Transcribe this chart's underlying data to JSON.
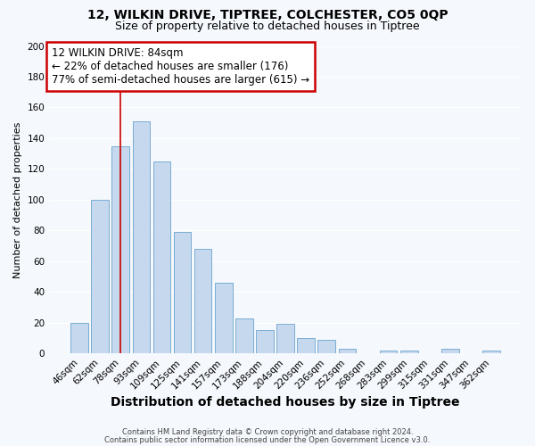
{
  "title": "12, WILKIN DRIVE, TIPTREE, COLCHESTER, CO5 0QP",
  "subtitle": "Size of property relative to detached houses in Tiptree",
  "xlabel": "Distribution of detached houses by size in Tiptree",
  "ylabel": "Number of detached properties",
  "bar_labels": [
    "46sqm",
    "62sqm",
    "78sqm",
    "93sqm",
    "109sqm",
    "125sqm",
    "141sqm",
    "157sqm",
    "173sqm",
    "188sqm",
    "204sqm",
    "220sqm",
    "236sqm",
    "252sqm",
    "268sqm",
    "283sqm",
    "299sqm",
    "315sqm",
    "331sqm",
    "347sqm",
    "362sqm"
  ],
  "bar_values": [
    20,
    100,
    135,
    151,
    125,
    79,
    68,
    46,
    23,
    15,
    19,
    10,
    9,
    3,
    0,
    2,
    2,
    0,
    3,
    0,
    2
  ],
  "bar_color": "#c5d8ed",
  "bar_edge_color": "#7aadd4",
  "vline_x": 2,
  "vline_color": "#cc0000",
  "ylim": [
    0,
    200
  ],
  "yticks": [
    0,
    20,
    40,
    60,
    80,
    100,
    120,
    140,
    160,
    180,
    200
  ],
  "annotation_title": "12 WILKIN DRIVE: 84sqm",
  "annotation_line1": "← 22% of detached houses are smaller (176)",
  "annotation_line2": "77% of semi-detached houses are larger (615) →",
  "annotation_box_color": "#ffffff",
  "annotation_box_edge": "#cc0000",
  "footer1": "Contains HM Land Registry data © Crown copyright and database right 2024.",
  "footer2": "Contains public sector information licensed under the Open Government Licence v3.0.",
  "bg_color": "#f5f8fc",
  "plot_bg_color": "#f5f8fc",
  "grid_color": "#ffffff",
  "title_fontsize": 10,
  "subtitle_fontsize": 9,
  "xlabel_fontsize": 10,
  "ylabel_fontsize": 8
}
